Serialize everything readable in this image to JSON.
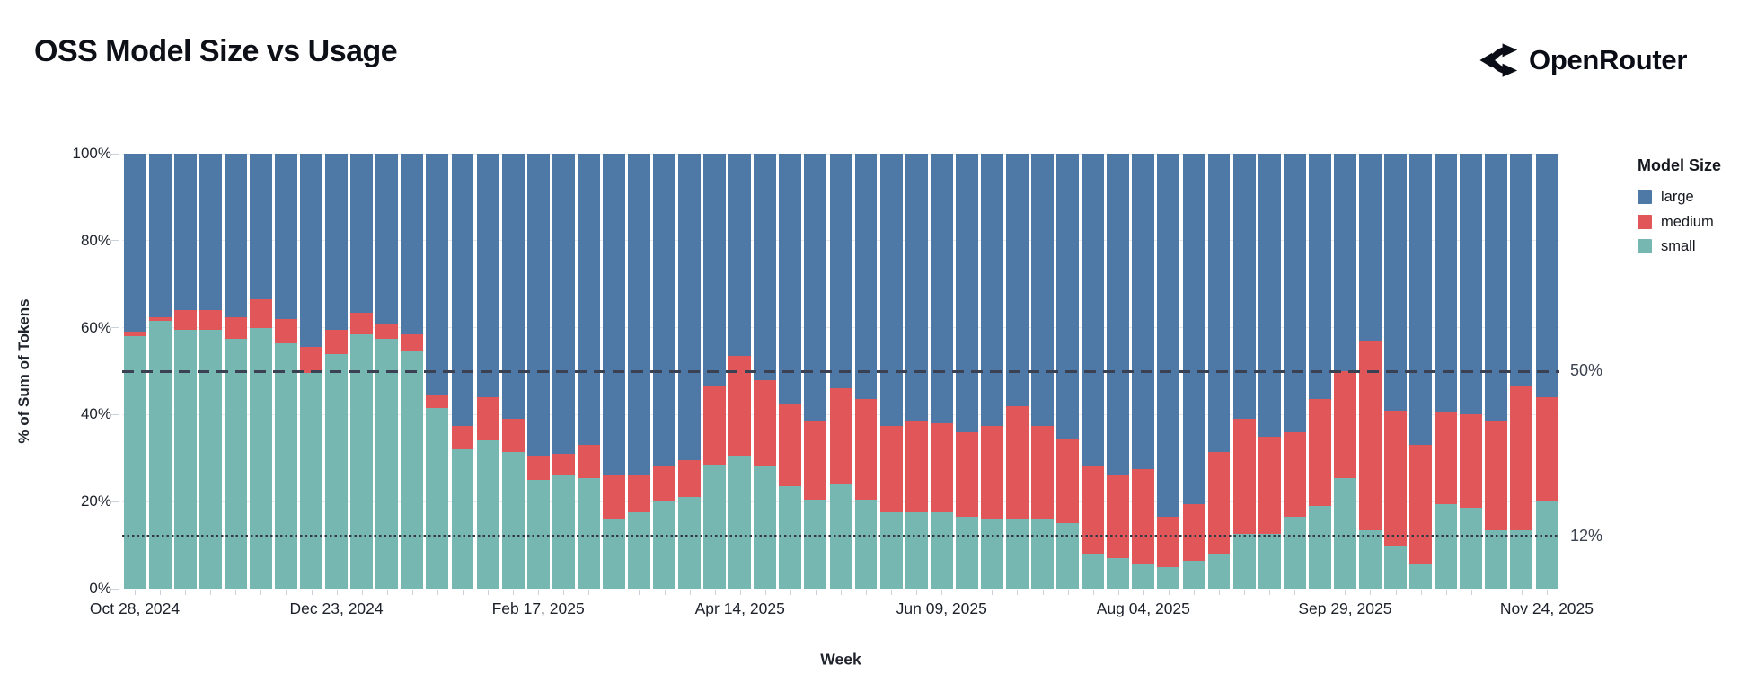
{
  "page": {
    "title": "OSS Model Size vs Usage"
  },
  "brand": {
    "name": "OpenRouter",
    "icon": "openrouter-fork-icon"
  },
  "chart_data": {
    "type": "bar",
    "stacked": true,
    "normalized_to_100pct": true,
    "title": "OSS Model Size vs Usage",
    "xlabel": "Week",
    "ylabel": "% of Sum of Tokens",
    "ylim": [
      0,
      100
    ],
    "y_tick_labels": [
      "0%",
      "20%",
      "40%",
      "60%",
      "80%",
      "100%"
    ],
    "y_tick_values": [
      0,
      20,
      40,
      60,
      80,
      100
    ],
    "n_bars": 57,
    "x_ticks": [
      {
        "bar": 1,
        "label": "Oct 28, 2024"
      },
      {
        "bar": 9,
        "label": "Dec 23, 2024"
      },
      {
        "bar": 17,
        "label": "Feb 17, 2025"
      },
      {
        "bar": 25,
        "label": "Apr 14, 2025"
      },
      {
        "bar": 33,
        "label": "Jun 09, 2025"
      },
      {
        "bar": 41,
        "label": "Aug 04, 2025"
      },
      {
        "bar": 49,
        "label": "Sep 29, 2025"
      },
      {
        "bar": 57,
        "label": "Nov 24, 2025"
      }
    ],
    "legend": {
      "title": "Model Size",
      "position": "right",
      "entries": [
        {
          "label": "large",
          "color": "#4e79a7"
        },
        {
          "label": "medium",
          "color": "#e15759"
        },
        {
          "label": "small",
          "color": "#76b7b2"
        }
      ]
    },
    "reference_lines": [
      {
        "value": 50,
        "label": "50%",
        "style": "dashed"
      },
      {
        "value": 12,
        "label": "12%",
        "style": "dotted"
      }
    ],
    "stack_order_bottom_to_top": [
      "small",
      "medium",
      "large"
    ],
    "series": [
      {
        "name": "small",
        "color": "#76b7b2",
        "values": [
          58,
          61.5,
          59.5,
          59.5,
          57.5,
          60,
          56.5,
          49.5,
          54,
          58.5,
          57.5,
          54.5,
          41.5,
          32,
          34,
          31.5,
          25,
          26,
          25.5,
          16,
          17.5,
          20,
          21,
          28.5,
          30.5,
          28,
          23.5,
          20.5,
          24,
          20.5,
          17.5,
          17.5,
          17.5,
          16.5,
          16,
          16,
          16,
          15,
          8,
          7,
          5.5,
          5,
          6.5,
          8,
          12.5,
          12.5,
          16.5,
          19,
          25.5,
          13.5,
          10,
          5.5,
          19.5,
          18.5,
          13.5,
          13.5,
          20
        ]
      },
      {
        "name": "medium",
        "color": "#e15759",
        "values": [
          1,
          1,
          4.5,
          4.5,
          5,
          6.5,
          5.5,
          6,
          5.5,
          5,
          3.5,
          4,
          3,
          5.5,
          10,
          7.5,
          5.5,
          5,
          7.5,
          10,
          8.5,
          8,
          8.5,
          18,
          23,
          20,
          19,
          18,
          22,
          23,
          20,
          21,
          20.5,
          19.5,
          21.5,
          26,
          21.5,
          19.5,
          20,
          19,
          22,
          11.5,
          13,
          23.5,
          26.5,
          22.5,
          19.5,
          24.5,
          24.5,
          43.5,
          31,
          27.5,
          21,
          21.5,
          25,
          33,
          24
        ]
      },
      {
        "name": "large",
        "color": "#4e79a7",
        "values": [
          41,
          37.5,
          36,
          36,
          37.5,
          33.5,
          38,
          44.5,
          40.5,
          36.5,
          39,
          41.5,
          55.5,
          62.5,
          56,
          61,
          69.5,
          69,
          67,
          74,
          74,
          72,
          70.5,
          53.5,
          46.5,
          52,
          57.5,
          61.5,
          54,
          56.5,
          62.5,
          61.5,
          62,
          64,
          62.5,
          58,
          62.5,
          65.5,
          72,
          74,
          72.5,
          83.5,
          80.5,
          68.5,
          61,
          65,
          64,
          56.5,
          50,
          43,
          59,
          67,
          59.5,
          60,
          61.5,
          53.5,
          56
        ]
      }
    ],
    "grid": "horizontal-only",
    "colors": {
      "large": "#4e79a7",
      "medium": "#e15759",
      "small": "#76b7b2",
      "grid": "#e6e9f0",
      "ref_line": "#3a4152"
    }
  }
}
